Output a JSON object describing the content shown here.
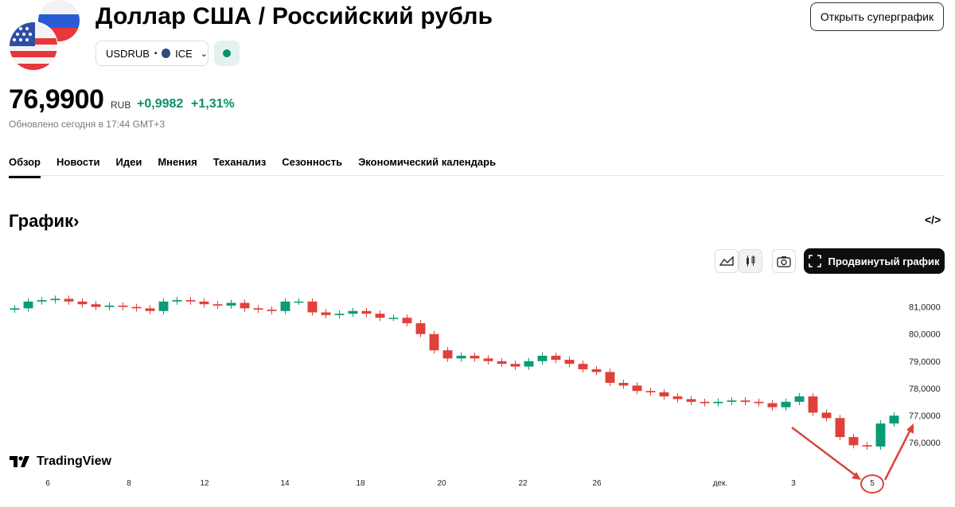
{
  "header": {
    "title": "Доллар США / Российский рубль",
    "super_chart_label": "Открыть суперграфик",
    "ticker": "USDRUB",
    "separator": "•",
    "exchange": "ICE"
  },
  "quote": {
    "price": "76,9900",
    "currency": "RUB",
    "change": "+0,9982",
    "change_percent": "+1,31%",
    "updated": "Обновлено сегодня в 17:44 GMT+3",
    "up_color": "#0a8f6c"
  },
  "tabs": [
    {
      "label": "Обзор",
      "active": true
    },
    {
      "label": "Новости"
    },
    {
      "label": "Идеи"
    },
    {
      "label": "Мнения"
    },
    {
      "label": "Теханализ"
    },
    {
      "label": "Сезонность"
    },
    {
      "label": "Экономический календарь"
    }
  ],
  "chart_section": {
    "title": "График",
    "title_arrow": "›",
    "embed_icon": "code-icon",
    "advanced_label": "Продвинутый график",
    "logo_text": "TradingView"
  },
  "chart_data": {
    "type": "candlestick",
    "up_color": "#0a9b77",
    "down_color": "#e0403a",
    "ylim": [
      75.0,
      81.9
    ],
    "y_ticks": [
      "81,0000",
      "80,0000",
      "79,0000",
      "78,0000",
      "77,0000",
      "76,0000"
    ],
    "y_tick_values": [
      81,
      80,
      79,
      78,
      77,
      76
    ],
    "x_ticks": [
      "6",
      "8",
      "12",
      "14",
      "18",
      "20",
      "22",
      "26",
      "дек.",
      "3",
      "5"
    ],
    "series_close": [
      80.95,
      81.2,
      81.25,
      81.3,
      81.2,
      81.1,
      81.0,
      81.05,
      81.0,
      80.95,
      80.85,
      81.2,
      81.25,
      81.2,
      81.1,
      81.05,
      81.15,
      80.95,
      80.9,
      80.85,
      81.2,
      81.2,
      80.8,
      80.7,
      80.75,
      80.85,
      80.75,
      80.6,
      80.6,
      80.4,
      80.0,
      79.4,
      79.1,
      79.2,
      79.1,
      79.0,
      78.9,
      78.8,
      79.0,
      79.2,
      79.05,
      78.9,
      78.7,
      78.6,
      78.2,
      78.1,
      77.9,
      77.85,
      77.7,
      77.6,
      77.5,
      77.45,
      77.5,
      77.55,
      77.5,
      77.45,
      77.3,
      77.5,
      77.7,
      77.1,
      76.9,
      76.2,
      75.9,
      75.85,
      76.7,
      76.99
    ],
    "annotations": [
      {
        "text": "5",
        "type": "circle-and-arrows"
      }
    ]
  }
}
